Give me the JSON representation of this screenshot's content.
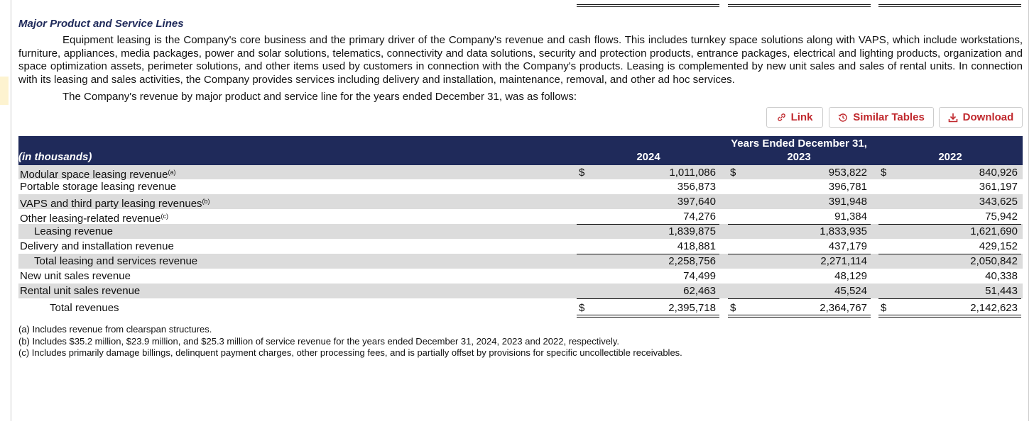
{
  "section_title": "Major Product and Service Lines",
  "paragraphs": [
    "Equipment leasing is the Company's core business and the primary driver of the Company's revenue and cash flows. This includes turnkey space solutions along with VAPS, which include workstations, furniture, appliances, media packages, power and solar solutions, telematics, connectivity and data solutions, security and protection products, entrance packages, electrical and lighting products, organization and space optimization assets, perimeter solutions, and other items used by customers in connection with the Company's products. Leasing is complemented by new unit sales and sales of rental units. In connection with its leasing and sales activities, the Company provides services including delivery and installation, maintenance, removal, and other ad hoc services.",
    "The Company's revenue by major product and service line for the years ended December 31, was as follows:"
  ],
  "buttons": [
    "Link",
    "Similar Tables",
    "Download"
  ],
  "table": {
    "header_group": "Years Ended December 31,",
    "unit_label": "(in thousands)",
    "years": [
      "2024",
      "2023",
      "2022"
    ],
    "rows": [
      {
        "label": "Modular space leasing revenue",
        "note": "(a)",
        "currency": [
          "$",
          "$",
          "$"
        ],
        "values": [
          "1,011,086",
          "953,822",
          "840,926"
        ]
      },
      {
        "label": "Portable storage leasing revenue",
        "values": [
          "356,873",
          "396,781",
          "361,197"
        ]
      },
      {
        "label": "VAPS and third party leasing revenues",
        "note": "(b)",
        "values": [
          "397,640",
          "391,948",
          "343,625"
        ]
      },
      {
        "label": "Other leasing-related revenue",
        "note": "(c)",
        "values": [
          "74,276",
          "91,384",
          "75,942"
        ]
      },
      {
        "label": "Leasing revenue",
        "values": [
          "1,839,875",
          "1,833,935",
          "1,621,690"
        ]
      },
      {
        "label": "Delivery and installation revenue",
        "values": [
          "418,881",
          "437,179",
          "429,152"
        ]
      },
      {
        "label": "Total leasing and services revenue",
        "values": [
          "2,258,756",
          "2,271,114",
          "2,050,842"
        ]
      },
      {
        "label": "New unit sales revenue",
        "values": [
          "74,499",
          "48,129",
          "40,338"
        ]
      },
      {
        "label": "Rental unit sales revenue",
        "values": [
          "62,463",
          "45,524",
          "51,443"
        ]
      },
      {
        "label": "Total revenues",
        "currency": [
          "$",
          "$",
          "$"
        ],
        "values": [
          "2,395,718",
          "2,364,767",
          "2,142,623"
        ]
      }
    ]
  },
  "footnotes": [
    "(a) Includes revenue from clearspan structures.",
    "(b) Includes $35.2 million, $23.9 million, and $25.3 million of service revenue for the years ended December 31, 2024, 2023 and 2022, respectively.",
    "(c) Includes primarily damage billings, delinquent payment charges, other processing fees, and is partially offset by provisions for specific uncollectible receivables."
  ]
}
